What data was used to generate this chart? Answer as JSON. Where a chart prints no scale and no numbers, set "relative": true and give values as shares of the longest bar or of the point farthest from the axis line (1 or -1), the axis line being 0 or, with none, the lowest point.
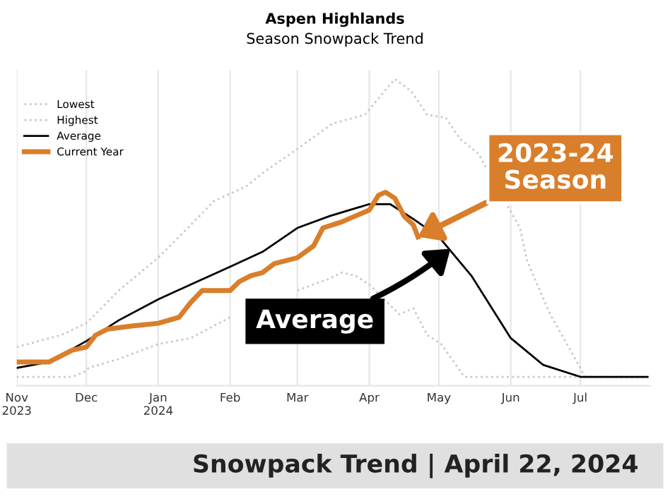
{
  "chart_data": {
    "type": "line",
    "title": "Aspen Highlands",
    "subtitle": "Season Snowpack Trend",
    "relative": true,
    "grid": "x",
    "xlim": [
      "2023-11-01",
      "2024-07-31"
    ],
    "legend": "top left",
    "marker": "none",
    "xticks": [
      {
        "value": "2023-11-01",
        "label": "Nov\n2023"
      },
      {
        "value": "2023-12-01",
        "label": "Dec"
      },
      {
        "value": "2024-01-01",
        "label": "Jan\n2024"
      },
      {
        "value": "2024-02-01",
        "label": "Feb"
      },
      {
        "value": "2024-03-01",
        "label": "Mar"
      },
      {
        "value": "2024-04-01",
        "label": "Apr"
      },
      {
        "value": "2024-05-01",
        "label": "May"
      },
      {
        "value": "2024-06-01",
        "label": "Jun"
      },
      {
        "value": "2024-07-01",
        "label": "Jul"
      }
    ],
    "series": [
      {
        "name": "Lowest",
        "color": "#c8c8c8",
        "line_style": "dotted",
        "x": [
          "2023-11-01",
          "2023-11-25",
          "2023-12-01",
          "2023-12-02",
          "2023-12-15",
          "2024-01-01",
          "2024-01-15",
          "2024-02-01",
          "2024-02-15",
          "2024-03-01",
          "2024-03-15",
          "2024-03-20",
          "2024-03-26",
          "2024-04-01",
          "2024-04-14",
          "2024-04-20",
          "2024-04-26",
          "2024-05-02",
          "2024-05-12",
          "2024-07-30"
        ],
        "values": [
          0,
          0,
          0.02,
          0.03,
          0.06,
          0.11,
          0.13,
          0.2,
          null,
          0.29,
          0.33,
          0.35,
          0.34,
          0.31,
          0.21,
          0.23,
          0.14,
          0.11,
          0,
          0
        ]
      },
      {
        "name": "Highest",
        "color": "#c8c8c8",
        "line_style": "dotted",
        "x": [
          "2023-11-01",
          "2023-11-20",
          "2023-12-01",
          "2023-12-15",
          "2024-01-01",
          "2024-01-15",
          "2024-01-25",
          "2024-02-08",
          "2024-02-16",
          "2024-02-29",
          "2024-03-16",
          "2024-03-30",
          "2024-04-12",
          "2024-04-19",
          "2024-04-26",
          "2024-05-04",
          "2024-05-10",
          "2024-05-18",
          "2024-06-05",
          "2024-06-08",
          "2024-06-18",
          "2024-07-01",
          "2024-07-03",
          "2024-07-30"
        ],
        "values": [
          0.1,
          0.14,
          0.18,
          0.29,
          0.4,
          0.51,
          0.59,
          0.64,
          0.69,
          0.76,
          0.85,
          0.88,
          1,
          0.96,
          0.88,
          0.87,
          0.8,
          0.75,
          0.5,
          0.39,
          0.21,
          0.03,
          0,
          0
        ]
      },
      {
        "name": "Average",
        "color": "#000000",
        "line_style": "solid",
        "x": [
          "2023-11-01",
          "2023-11-15",
          "2023-12-01",
          "2023-12-15",
          "2024-01-01",
          "2024-01-15",
          "2024-02-01",
          "2024-02-15",
          "2024-03-01",
          "2024-03-15",
          "2024-04-01",
          "2024-04-10",
          "2024-04-20",
          "2024-05-01",
          "2024-05-15",
          "2024-06-01",
          "2024-06-15",
          "2024-07-01",
          "2024-07-30"
        ],
        "values": [
          0.03,
          0.05,
          0.12,
          0.19,
          0.26,
          0.31,
          0.37,
          0.42,
          0.5,
          0.54,
          0.58,
          0.58,
          0.53,
          0.47,
          0.34,
          0.13,
          0.04,
          0,
          0
        ]
      },
      {
        "name": "Current Year",
        "color": "#d97e2a",
        "line_style": "solid",
        "x": [
          "2023-11-01",
          "2023-11-08",
          "2023-11-15",
          "2023-11-25",
          "2023-12-01",
          "2023-12-05",
          "2023-12-10",
          "2023-12-20",
          "2024-01-01",
          "2024-01-10",
          "2024-01-15",
          "2024-01-20",
          "2024-02-01",
          "2024-02-05",
          "2024-02-10",
          "2024-02-15",
          "2024-02-20",
          "2024-03-01",
          "2024-03-08",
          "2024-03-12",
          "2024-03-20",
          "2024-04-01",
          "2024-04-05",
          "2024-04-08",
          "2024-04-12",
          "2024-04-16",
          "2024-04-20",
          "2024-04-22"
        ],
        "values": [
          0.05,
          0.05,
          0.05,
          0.09,
          0.1,
          0.14,
          0.16,
          0.17,
          0.18,
          0.2,
          0.25,
          0.29,
          0.29,
          0.32,
          0.34,
          0.35,
          0.38,
          0.4,
          0.44,
          0.5,
          0.52,
          0.56,
          0.61,
          0.62,
          0.6,
          0.54,
          0.51,
          0.47
        ]
      }
    ],
    "annotations": [
      {
        "text": "2023-24\nSeason",
        "x": "2024-04-22",
        "y": 0.47
      },
      {
        "text": "Average",
        "x": "2024-05-06",
        "y": 0.43
      },
      "Snowpack Trend | April 22, 2024"
    ]
  }
}
